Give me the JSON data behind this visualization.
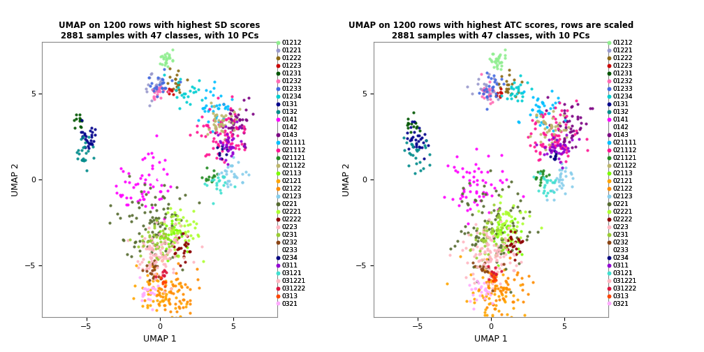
{
  "title1": "UMAP on 1200 rows with highest SD scores\n2881 samples with 47 classes, with 10 PCs",
  "title2": "UMAP on 1200 rows with highest ATC scores, rows are scaled\n2881 samples with 47 classes, with 10 PCs",
  "xlabel": "UMAP 1",
  "ylabel": "UMAP 2",
  "legend_labels": [
    "01212",
    "01221",
    "01222",
    "01223",
    "01231",
    "01232",
    "01233",
    "01234",
    "0131",
    "0132",
    "0141",
    "0142",
    "0143",
    "021111",
    "021112",
    "021121",
    "021122",
    "02113",
    "02121",
    "02122",
    "02123",
    "0221",
    "02221",
    "02222",
    "0223",
    "0231",
    "0232",
    "0233",
    "0234",
    "0311",
    "03121",
    "031221",
    "031222",
    "0313",
    "0321"
  ],
  "colors": [
    "#90EE90",
    "#9999CC",
    "#8B6914",
    "#CC0000",
    "#005500",
    "#FF69B4",
    "#4169E1",
    "#00CED1",
    "#00008B",
    "#008B8B",
    "#FF00FF",
    "#FFFFFF",
    "#7B0082",
    "#00BFFF",
    "#FF1493",
    "#228B22",
    "#BDB76B",
    "#7CFC00",
    "#FFA500",
    "#FF8C00",
    "#87CEEB",
    "#556B2F",
    "#ADFF2F",
    "#8B0000",
    "#FFB6C1",
    "#9ACD32",
    "#8B4513",
    "#FFFFFF",
    "#000080",
    "#9400D3",
    "#40E0D0",
    "#FFB6C1",
    "#DC143C",
    "#FF4500",
    "#FFAAFF"
  ],
  "no_dot": [
    "0142",
    "0233"
  ],
  "xlim": [
    -8,
    8
  ],
  "ylim": [
    -8,
    8
  ],
  "xticks": [
    -5,
    0,
    5
  ],
  "yticks": [
    -5,
    0,
    5
  ],
  "cluster_positions_plot1": [
    [
      0.5,
      7.1,
      0.25,
      0,
      25
    ],
    [
      -0.4,
      5.5,
      0.45,
      1,
      22
    ],
    [
      1.2,
      5.6,
      0.35,
      2,
      18
    ],
    [
      0.75,
      5.15,
      0.12,
      3,
      7
    ],
    [
      -5.5,
      3.3,
      0.25,
      4,
      12
    ],
    [
      -0.15,
      5.1,
      0.28,
      5,
      18
    ],
    [
      -0.05,
      5.6,
      0.38,
      6,
      22
    ],
    [
      1.85,
      5.1,
      0.48,
      7,
      22
    ],
    [
      -5.0,
      2.5,
      0.45,
      8,
      28
    ],
    [
      -5.2,
      1.5,
      0.45,
      9,
      22
    ],
    [
      -1.1,
      -0.2,
      0.9,
      10,
      55
    ],
    [
      0.0,
      0.0,
      0.04,
      11,
      1
    ],
    [
      5.4,
      3.3,
      0.65,
      12,
      45
    ],
    [
      3.6,
      4.3,
      0.55,
      13,
      35
    ],
    [
      4.3,
      2.6,
      0.85,
      14,
      75
    ],
    [
      3.3,
      0.25,
      0.28,
      15,
      13
    ],
    [
      4.1,
      3.1,
      0.55,
      16,
      38
    ],
    [
      0.85,
      -3.4,
      0.55,
      17,
      38
    ],
    [
      -0.2,
      -7.0,
      0.95,
      18,
      65
    ],
    [
      0.85,
      -6.5,
      0.75,
      19,
      52
    ],
    [
      4.9,
      0.25,
      0.45,
      20,
      28
    ],
    [
      -0.3,
      -2.9,
      1.2,
      21,
      95
    ],
    [
      1.3,
      -2.9,
      0.65,
      22,
      48
    ],
    [
      1.6,
      -3.9,
      0.38,
      23,
      22
    ],
    [
      -0.15,
      -4.3,
      0.95,
      24,
      65
    ],
    [
      -0.25,
      -3.4,
      0.65,
      25,
      42
    ],
    [
      -0.45,
      -5.4,
      0.38,
      26,
      18
    ],
    [
      0.0,
      -5.0,
      0.04,
      27,
      1
    ],
    [
      4.3,
      1.6,
      0.22,
      28,
      9
    ],
    [
      4.7,
      2.1,
      0.48,
      29,
      32
    ],
    [
      3.9,
      -0.25,
      0.38,
      30,
      18
    ],
    [
      -0.15,
      -4.6,
      0.65,
      31,
      38
    ],
    [
      0.25,
      -5.6,
      0.22,
      32,
      9
    ],
    [
      0.25,
      -5.9,
      0.14,
      33,
      7
    ],
    [
      -0.75,
      -6.6,
      0.38,
      34,
      22
    ]
  ],
  "cluster_positions_plot2": [
    [
      0.5,
      7.0,
      0.3,
      0,
      28
    ],
    [
      -0.3,
      5.4,
      0.5,
      1,
      24
    ],
    [
      1.1,
      5.5,
      0.4,
      2,
      20
    ],
    [
      0.6,
      5.0,
      0.15,
      3,
      8
    ],
    [
      -5.4,
      3.1,
      0.3,
      4,
      14
    ],
    [
      -0.2,
      5.0,
      0.3,
      5,
      20
    ],
    [
      0.0,
      5.4,
      0.4,
      6,
      24
    ],
    [
      1.7,
      5.0,
      0.5,
      7,
      24
    ],
    [
      -5.0,
      2.3,
      0.5,
      8,
      30
    ],
    [
      -5.1,
      1.4,
      0.5,
      9,
      24
    ],
    [
      -0.9,
      -0.1,
      1.0,
      10,
      58
    ],
    [
      0.0,
      0.0,
      0.04,
      11,
      1
    ],
    [
      5.3,
      3.1,
      0.7,
      12,
      48
    ],
    [
      3.5,
      4.1,
      0.6,
      13,
      38
    ],
    [
      4.2,
      2.4,
      0.9,
      14,
      78
    ],
    [
      3.2,
      0.1,
      0.3,
      15,
      15
    ],
    [
      4.0,
      2.9,
      0.6,
      16,
      40
    ],
    [
      0.8,
      -3.3,
      0.6,
      17,
      40
    ],
    [
      -0.1,
      -6.9,
      1.0,
      18,
      68
    ],
    [
      0.8,
      -6.4,
      0.8,
      19,
      54
    ],
    [
      4.8,
      0.1,
      0.5,
      20,
      30
    ],
    [
      -0.2,
      -2.8,
      1.3,
      21,
      98
    ],
    [
      1.2,
      -2.8,
      0.7,
      22,
      50
    ],
    [
      1.5,
      -3.8,
      0.4,
      23,
      24
    ],
    [
      -0.1,
      -4.2,
      1.0,
      24,
      68
    ],
    [
      -0.2,
      -3.3,
      0.7,
      25,
      44
    ],
    [
      -0.4,
      -5.3,
      0.4,
      26,
      20
    ],
    [
      0.0,
      -5.0,
      0.04,
      27,
      1
    ],
    [
      4.2,
      1.4,
      0.25,
      28,
      10
    ],
    [
      4.6,
      1.9,
      0.5,
      29,
      34
    ],
    [
      3.8,
      -0.3,
      0.4,
      30,
      20
    ],
    [
      -0.1,
      -4.5,
      0.7,
      31,
      40
    ],
    [
      0.2,
      -5.5,
      0.25,
      32,
      10
    ],
    [
      0.2,
      -5.8,
      0.15,
      33,
      8
    ],
    [
      -0.7,
      -6.5,
      0.4,
      34,
      24
    ]
  ],
  "point_size": 9,
  "legend_fontsize": 6.5,
  "title_fontsize": 8.5,
  "axis_fontsize": 9
}
